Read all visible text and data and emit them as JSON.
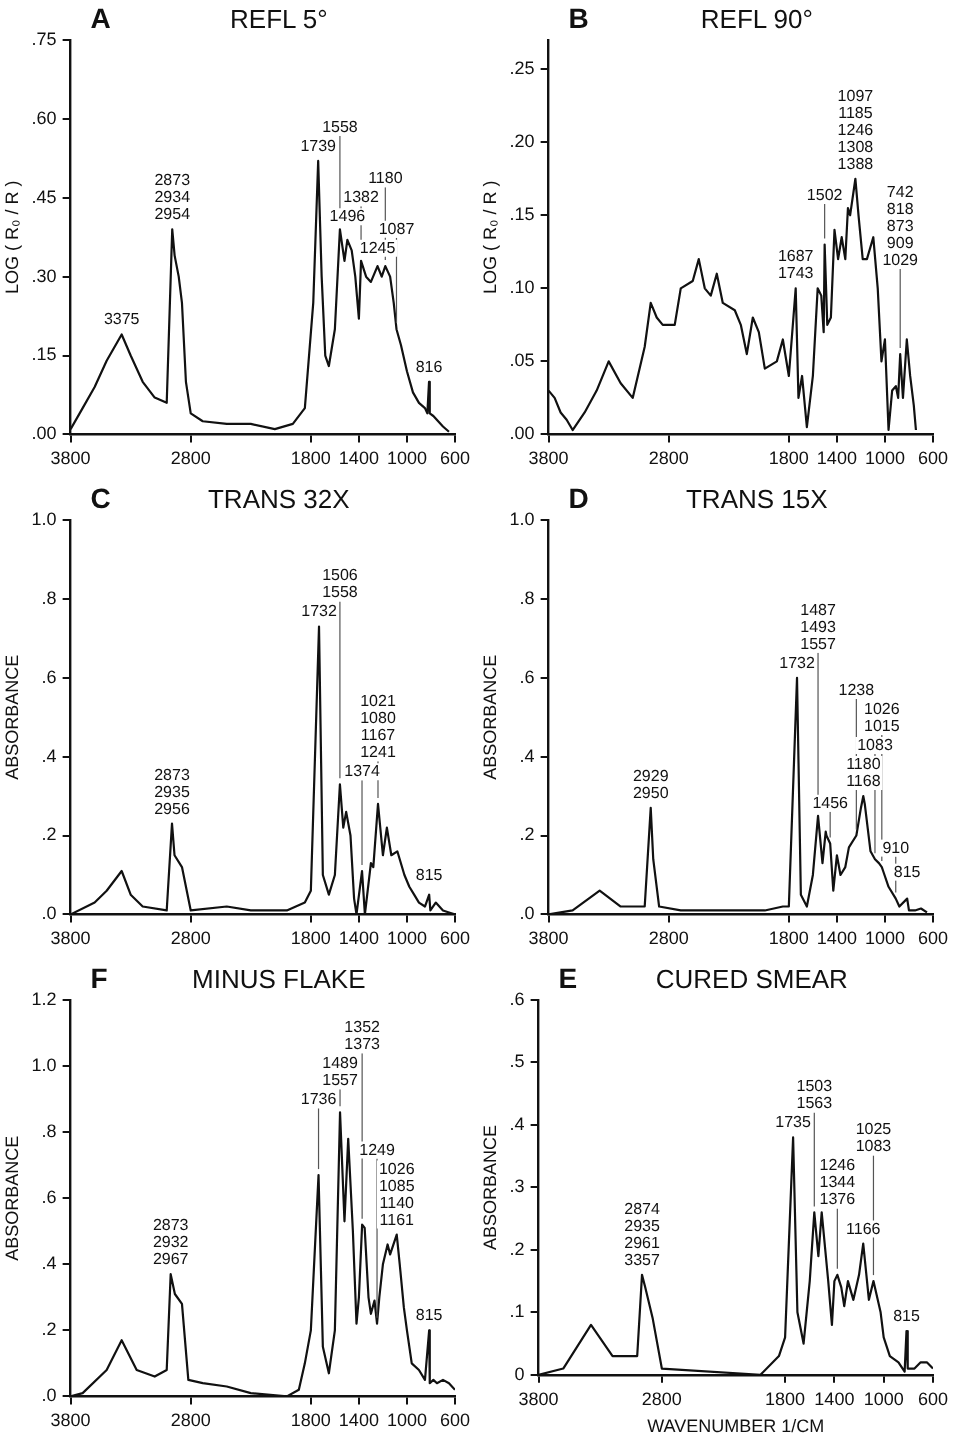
{
  "chart_data": [
    {
      "type": "line",
      "title": "REFL 5°",
      "subtitle": "A",
      "ylabel": "LOG ( R₀ / R )",
      "xlim": [
        3800,
        600
      ],
      "xticks": [
        3800,
        2800,
        1800,
        1400,
        1000,
        600
      ],
      "ylim": [
        0,
        0.75
      ],
      "yticks": [
        {
          "value": 0,
          "label": ".00"
        },
        {
          "value": 0.15,
          "label": ".15"
        },
        {
          "value": 0.3,
          "label": ".30"
        },
        {
          "value": 0.45,
          "label": ".45"
        },
        {
          "value": 0.6,
          "label": ".60"
        },
        {
          "value": 0.75,
          "label": ".75"
        }
      ],
      "marker": "none",
      "line_style": "solid",
      "series": [
        {
          "color": "#111111",
          "x": [
            3800,
            3700,
            3600,
            3500,
            3375,
            3300,
            3200,
            3100,
            3000,
            2954,
            2934,
            2900,
            2873,
            2840,
            2800,
            2700,
            2500,
            2300,
            2100,
            1950,
            1850,
            1780,
            1739,
            1710,
            1680,
            1650,
            1600,
            1558,
            1520,
            1496,
            1460,
            1430,
            1400,
            1382,
            1340,
            1300,
            1245,
            1210,
            1180,
            1140,
            1110,
            1087,
            1050,
            1000,
            950,
            900,
            850,
            830,
            816,
            810,
            780,
            740,
            700,
            650
          ],
          "values": [
            0.01,
            0.05,
            0.09,
            0.14,
            0.19,
            0.15,
            0.1,
            0.07,
            0.06,
            0.39,
            0.34,
            0.3,
            0.25,
            0.1,
            0.04,
            0.025,
            0.02,
            0.02,
            0.01,
            0.02,
            0.05,
            0.25,
            0.52,
            0.3,
            0.15,
            0.13,
            0.2,
            0.39,
            0.33,
            0.37,
            0.35,
            0.3,
            0.22,
            0.33,
            0.3,
            0.29,
            0.32,
            0.3,
            0.32,
            0.3,
            0.25,
            0.2,
            0.17,
            0.12,
            0.08,
            0.06,
            0.05,
            0.04,
            0.1,
            0.04,
            0.035,
            0.025,
            0.015,
            0.005
          ]
        }
      ],
      "annotations": [
        {
          "text": "3375",
          "x": 3375,
          "y": 0.19
        },
        {
          "text": "2873\n2934\n2954",
          "x": 2954,
          "y": 0.39
        },
        {
          "text": "1739",
          "x": 1739,
          "y": 0.52
        },
        {
          "text": "1558",
          "x": 1558,
          "y": 0.39
        },
        {
          "text": "1496",
          "x": 1496,
          "y": 0.37
        },
        {
          "text": "1382",
          "x": 1382,
          "y": 0.33
        },
        {
          "text": "1245",
          "x": 1245,
          "y": 0.32
        },
        {
          "text": "1180",
          "x": 1180,
          "y": 0.32
        },
        {
          "text": "1087",
          "x": 1087,
          "y": 0.2
        },
        {
          "text": "816",
          "x": 816,
          "y": 0.1
        }
      ]
    },
    {
      "type": "line",
      "title": "REFL 90°",
      "subtitle": "B",
      "ylabel": "LOG ( R₀ / R )",
      "xlim": [
        3800,
        600
      ],
      "xticks": [
        3800,
        2800,
        1800,
        1400,
        1000,
        600
      ],
      "ylim": [
        0,
        0.27
      ],
      "yticks": [
        {
          "value": 0,
          "label": ".00"
        },
        {
          "value": 0.05,
          "label": ".05"
        },
        {
          "value": 0.1,
          "label": ".10"
        },
        {
          "value": 0.15,
          "label": ".15"
        },
        {
          "value": 0.2,
          "label": ".20"
        },
        {
          "value": 0.25,
          "label": ".25"
        }
      ],
      "marker": "none",
      "line_style": "solid",
      "series": [
        {
          "color": "#111111",
          "x": [
            3800,
            3750,
            3700,
            3650,
            3600,
            3500,
            3400,
            3300,
            3200,
            3100,
            3000,
            2950,
            2900,
            2850,
            2750,
            2700,
            2600,
            2550,
            2500,
            2450,
            2400,
            2350,
            2250,
            2200,
            2150,
            2100,
            2050,
            2000,
            1900,
            1850,
            1800,
            1743,
            1720,
            1690,
            1650,
            1600,
            1560,
            1530,
            1510,
            1502,
            1480,
            1450,
            1420,
            1390,
            1360,
            1330,
            1308,
            1290,
            1246,
            1220,
            1185,
            1150,
            1097,
            1060,
            1029,
            1000,
            970,
            940,
            909,
            890,
            873,
            850,
            818,
            790,
            760,
            742
          ],
          "values": [
            0.03,
            0.025,
            0.015,
            0.01,
            0.003,
            0.015,
            0.03,
            0.05,
            0.035,
            0.025,
            0.06,
            0.09,
            0.08,
            0.075,
            0.075,
            0.1,
            0.105,
            0.12,
            0.1,
            0.095,
            0.11,
            0.09,
            0.085,
            0.075,
            0.055,
            0.08,
            0.07,
            0.045,
            0.05,
            0.065,
            0.04,
            0.1,
            0.025,
            0.04,
            0.005,
            0.04,
            0.1,
            0.095,
            0.07,
            0.13,
            0.075,
            0.08,
            0.14,
            0.12,
            0.135,
            0.12,
            0.155,
            0.15,
            0.175,
            0.15,
            0.12,
            0.12,
            0.135,
            0.1,
            0.05,
            0.065,
            0.003,
            0.03,
            0.033,
            0.025,
            0.055,
            0.025,
            0.065,
            0.04,
            0.02,
            0.003
          ]
        }
      ],
      "annotations": [
        {
          "text": "1687\n1743",
          "x": 1743,
          "y": 0.1
        },
        {
          "text": "1502",
          "x": 1502,
          "y": 0.13
        },
        {
          "text": "1097\n1185\n1246\n1308\n1388",
          "x": 1246,
          "y": 0.175
        },
        {
          "text": "742\n818\n873\n909\n1029",
          "x": 873,
          "y": 0.055
        }
      ]
    },
    {
      "type": "line",
      "title": "TRANS 32X",
      "subtitle": "C",
      "ylabel": "ABSORBANCE",
      "xlim": [
        3800,
        600
      ],
      "xticks": [
        3800,
        2800,
        1800,
        1400,
        1000,
        600
      ],
      "ylim": [
        0,
        1
      ],
      "yticks": [
        {
          "value": 0,
          "label": ".0"
        },
        {
          "value": 0.2,
          "label": ".2"
        },
        {
          "value": 0.4,
          "label": ".4"
        },
        {
          "value": 0.6,
          "label": ".6"
        },
        {
          "value": 0.8,
          "label": ".8"
        },
        {
          "value": 1,
          "label": "1.0"
        }
      ],
      "marker": "none",
      "line_style": "solid",
      "series": [
        {
          "color": "#111111",
          "x": [
            3800,
            3600,
            3500,
            3375,
            3300,
            3200,
            3000,
            2956,
            2935,
            2873,
            2800,
            2500,
            2300,
            2000,
            1850,
            1800,
            1732,
            1700,
            1650,
            1600,
            1558,
            1530,
            1506,
            1470,
            1440,
            1420,
            1374,
            1350,
            1300,
            1280,
            1241,
            1200,
            1167,
            1130,
            1080,
            1021,
            980,
            940,
            900,
            850,
            815,
            805,
            760,
            700,
            650,
            600
          ],
          "values": [
            0.0,
            0.03,
            0.06,
            0.11,
            0.05,
            0.02,
            0.01,
            0.23,
            0.15,
            0.12,
            0.01,
            0.02,
            0.01,
            0.01,
            0.03,
            0.06,
            0.73,
            0.1,
            0.05,
            0.1,
            0.33,
            0.22,
            0.26,
            0.2,
            0.04,
            0.0,
            0.11,
            0.0,
            0.13,
            0.12,
            0.28,
            0.15,
            0.22,
            0.15,
            0.16,
            0.1,
            0.07,
            0.05,
            0.03,
            0.02,
            0.05,
            0.01,
            0.03,
            0.01,
            0.005,
            0.0
          ]
        }
      ],
      "annotations": [
        {
          "text": "2873\n2935\n2956",
          "x": 2956,
          "y": 0.23
        },
        {
          "text": "1732",
          "x": 1732,
          "y": 0.73
        },
        {
          "text": "1506\n1558",
          "x": 1558,
          "y": 0.33
        },
        {
          "text": "1374",
          "x": 1374,
          "y": 0.11
        },
        {
          "text": "1021\n1080\n1167\n1241",
          "x": 1241,
          "y": 0.28
        },
        {
          "text": "815",
          "x": 815,
          "y": 0.05
        }
      ]
    },
    {
      "type": "line",
      "title": "TRANS 15X",
      "subtitle": "D",
      "ylabel": "ABSORBANCE",
      "xlim": [
        3800,
        600
      ],
      "xticks": [
        3800,
        2800,
        1800,
        1400,
        1000,
        600
      ],
      "ylim": [
        0,
        1
      ],
      "yticks": [
        {
          "value": 0,
          "label": ".0"
        },
        {
          "value": 0.2,
          "label": ".2"
        },
        {
          "value": 0.4,
          "label": ".4"
        },
        {
          "value": 0.6,
          "label": ".6"
        },
        {
          "value": 0.8,
          "label": ".8"
        },
        {
          "value": 1,
          "label": "1.0"
        }
      ],
      "marker": "none",
      "line_style": "solid",
      "series": [
        {
          "color": "#111111",
          "x": [
            3800,
            3600,
            3375,
            3200,
            3000,
            2950,
            2929,
            2880,
            2700,
            2000,
            1850,
            1800,
            1732,
            1700,
            1650,
            1600,
            1557,
            1520,
            1493,
            1487,
            1456,
            1430,
            1400,
            1370,
            1330,
            1300,
            1238,
            1200,
            1180,
            1168,
            1120,
            1083,
            1050,
            1026,
            1015,
            970,
            910,
            880,
            815,
            800,
            750,
            700,
            650
          ],
          "values": [
            0.0,
            0.01,
            0.06,
            0.02,
            0.02,
            0.27,
            0.14,
            0.02,
            0.01,
            0.01,
            0.02,
            0.02,
            0.6,
            0.05,
            0.02,
            0.1,
            0.25,
            0.13,
            0.21,
            0.2,
            0.18,
            0.06,
            0.15,
            0.1,
            0.12,
            0.17,
            0.2,
            0.27,
            0.3,
            0.28,
            0.16,
            0.14,
            0.13,
            0.12,
            0.11,
            0.07,
            0.04,
            0.02,
            0.04,
            0.01,
            0.01,
            0.015,
            0.005
          ]
        }
      ],
      "annotations": [
        {
          "text": "2929\n2950",
          "x": 2950,
          "y": 0.27
        },
        {
          "text": "1732",
          "x": 1732,
          "y": 0.6
        },
        {
          "text": "1487\n1493\n1557",
          "x": 1557,
          "y": 0.25
        },
        {
          "text": "1456",
          "x": 1456,
          "y": 0.18
        },
        {
          "text": "1180\n1168",
          "x": 1180,
          "y": 0.3
        },
        {
          "text": "1083",
          "x": 1083,
          "y": 0.14
        },
        {
          "text": "1026\n1015",
          "x": 1026,
          "y": 0.12
        },
        {
          "text": "910",
          "x": 910,
          "y": 0.04
        },
        {
          "text": "815",
          "x": 815,
          "y": 0.04
        },
        {
          "text": "1238",
          "x": 1238,
          "y": 0.2
        }
      ]
    },
    {
      "type": "line",
      "title": "MINUS FLAKE",
      "subtitle": "F",
      "ylabel": "ABSORBANCE",
      "xlim": [
        3800,
        600
      ],
      "xticks": [
        3800,
        2800,
        1800,
        1400,
        1000,
        600
      ],
      "ylim": [
        0,
        1.2
      ],
      "yticks": [
        {
          "value": 0,
          "label": ".0"
        },
        {
          "value": 0.2,
          "label": ".2"
        },
        {
          "value": 0.4,
          "label": ".4"
        },
        {
          "value": 0.6,
          "label": ".6"
        },
        {
          "value": 0.8,
          "label": ".8"
        },
        {
          "value": 1,
          "label": "1.0"
        },
        {
          "value": 1.2,
          "label": "1.2"
        }
      ],
      "marker": "none",
      "line_style": "solid",
      "series": [
        {
          "color": "#111111",
          "x": [
            3800,
            3700,
            3500,
            3375,
            3250,
            3100,
            3000,
            2967,
            2932,
            2873,
            2820,
            2700,
            2500,
            2300,
            2000,
            1900,
            1850,
            1800,
            1736,
            1700,
            1650,
            1600,
            1557,
            1520,
            1489,
            1450,
            1420,
            1400,
            1373,
            1352,
            1320,
            1300,
            1270,
            1249,
            1230,
            1200,
            1161,
            1140,
            1085,
            1060,
            1026,
            1000,
            960,
            900,
            850,
            815,
            810,
            780,
            750,
            700,
            650,
            600
          ],
          "values": [
            0.0,
            0.01,
            0.08,
            0.17,
            0.08,
            0.06,
            0.08,
            0.37,
            0.31,
            0.28,
            0.05,
            0.04,
            0.03,
            0.01,
            0.0,
            0.02,
            0.1,
            0.2,
            0.67,
            0.15,
            0.07,
            0.2,
            0.86,
            0.53,
            0.78,
            0.5,
            0.22,
            0.3,
            0.52,
            0.51,
            0.3,
            0.25,
            0.29,
            0.22,
            0.3,
            0.4,
            0.46,
            0.43,
            0.49,
            0.4,
            0.27,
            0.2,
            0.1,
            0.08,
            0.05,
            0.2,
            0.04,
            0.05,
            0.04,
            0.05,
            0.04,
            0.02
          ]
        }
      ],
      "annotations": [
        {
          "text": "2873\n2932\n2967",
          "x": 2967,
          "y": 0.37
        },
        {
          "text": "1736",
          "x": 1736,
          "y": 0.67
        },
        {
          "text": "1489\n1557",
          "x": 1557,
          "y": 0.86
        },
        {
          "text": "1352\n1373",
          "x": 1373,
          "y": 0.52
        },
        {
          "text": "1026\n1085\n1140\n1161",
          "x": 1085,
          "y": 0.49
        },
        {
          "text": "815",
          "x": 815,
          "y": 0.2
        },
        {
          "text": "1249",
          "x": 1249,
          "y": 0.22
        }
      ]
    },
    {
      "type": "line",
      "title": "CURED SMEAR",
      "subtitle": "E",
      "xlabel": "WAVENUMBER 1/CM",
      "ylabel": "ABSORBANCE",
      "xlim": [
        3800,
        600
      ],
      "xticks": [
        3800,
        2800,
        1800,
        1400,
        1000,
        600
      ],
      "ylim": [
        0,
        0.6
      ],
      "yticks": [
        0,
        {
          "value": 0.1,
          "label": ".1"
        },
        {
          "value": 0.2,
          "label": ".2"
        },
        {
          "value": 0.3,
          "label": ".3"
        },
        {
          "value": 0.4,
          "label": ".4"
        },
        {
          "value": 0.5,
          "label": ".5"
        },
        {
          "value": 0.6,
          "label": ".6"
        }
      ],
      "marker": "none",
      "line_style": "solid",
      "series": [
        {
          "color": "#111111",
          "x": [
            3800,
            3600,
            3375,
            3200,
            3000,
            2961,
            2935,
            2874,
            2800,
            2000,
            1850,
            1800,
            1735,
            1700,
            1650,
            1600,
            1563,
            1530,
            1503,
            1450,
            1420,
            1400,
            1376,
            1344,
            1320,
            1290,
            1246,
            1200,
            1166,
            1120,
            1083,
            1025,
            1000,
            950,
            880,
            830,
            815,
            805,
            750,
            700,
            650,
            600
          ],
          "values": [
            0.0,
            0.01,
            0.08,
            0.03,
            0.03,
            0.16,
            0.14,
            0.09,
            0.01,
            0.0,
            0.03,
            0.06,
            0.38,
            0.1,
            0.05,
            0.15,
            0.26,
            0.19,
            0.26,
            0.15,
            0.08,
            0.15,
            0.16,
            0.14,
            0.11,
            0.15,
            0.12,
            0.16,
            0.21,
            0.12,
            0.15,
            0.1,
            0.06,
            0.03,
            0.02,
            0.005,
            0.07,
            0.01,
            0.01,
            0.02,
            0.02,
            0.01
          ]
        }
      ],
      "annotations": [
        {
          "text": "2874\n2935\n2961\n3357",
          "x": 2961,
          "y": 0.16
        },
        {
          "text": "1735",
          "x": 1735,
          "y": 0.38
        },
        {
          "text": "1503\n1563",
          "x": 1563,
          "y": 0.26
        },
        {
          "text": "1246\n1344\n1376",
          "x": 1376,
          "y": 0.16
        },
        {
          "text": "1166",
          "x": 1166,
          "y": 0.21
        },
        {
          "text": "1025\n1083",
          "x": 1083,
          "y": 0.15
        },
        {
          "text": "815",
          "x": 815,
          "y": 0.07
        }
      ]
    }
  ]
}
